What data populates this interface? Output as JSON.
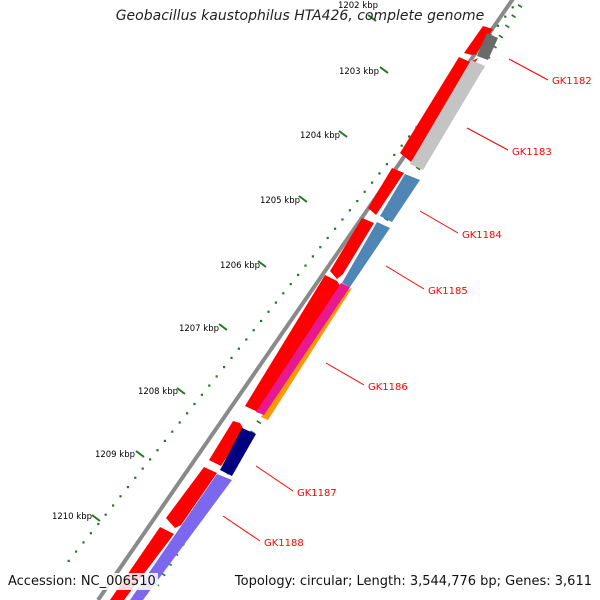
{
  "title": "Geobacillus kaustophilus HTA426, complete genome",
  "footer": {
    "accession": "Accession: NC_006510",
    "summary": "Topology: circular; Length: 3,544,776 bp; Genes: 3,611"
  },
  "scale_labels": [
    "1202 kbp",
    "1203 kbp",
    "1204 kbp",
    "1205 kbp",
    "1206 kbp",
    "1207 kbp",
    "1208 kbp",
    "1209 kbp",
    "1210 kbp"
  ],
  "genes": [
    {
      "id": "GK1182",
      "color": "#6a6a6a"
    },
    {
      "id": "GK1183",
      "color": "#c4c4c4"
    },
    {
      "id": "GK1184",
      "color": "#4f86b6"
    },
    {
      "id": "GK1185",
      "color": "#4f86b6"
    },
    {
      "id": "GK1186",
      "color": "#ff9900"
    },
    {
      "id": "GK1187",
      "color": "#000080"
    },
    {
      "id": "GK1188",
      "color": "#7b68ee"
    }
  ],
  "colors": {
    "forward_strand": "#ff0000",
    "magenta_feature": "#e8188e",
    "backbone": "#8a8a8a",
    "tick": "#1f7a1f",
    "label": "#ff0000"
  }
}
